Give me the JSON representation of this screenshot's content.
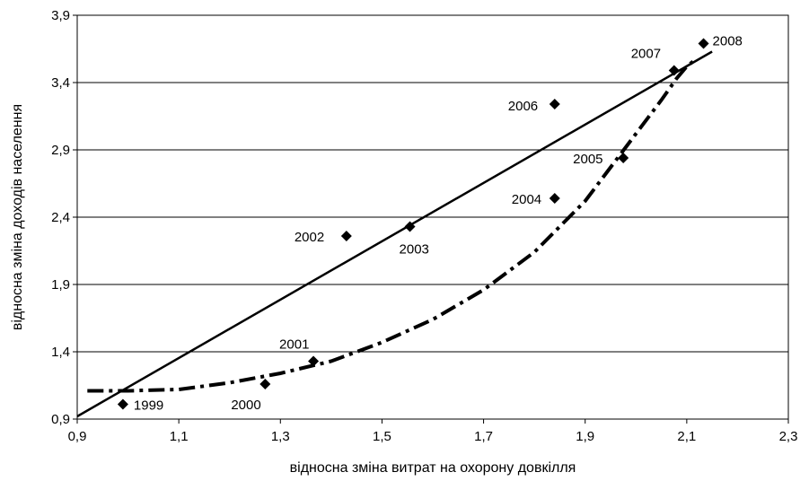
{
  "chart_data": {
    "type": "scatter",
    "title": "",
    "xlabel": "відносна зміна витрат на охорону довкілля",
    "ylabel": "відносна зміна доходів населення",
    "xlim": [
      0.9,
      2.3
    ],
    "ylim": [
      0.9,
      3.9
    ],
    "x_ticks": [
      "0,9",
      "1,1",
      "1,3",
      "1,5",
      "1,7",
      "1,9",
      "2,1",
      "2,3"
    ],
    "y_ticks": [
      "0,9",
      "1,4",
      "1,9",
      "2,4",
      "2,9",
      "3,4",
      "3,9"
    ],
    "grid": "horizontal",
    "points": [
      {
        "label": "1999",
        "x": 0.99,
        "y": 1.01
      },
      {
        "label": "2000",
        "x": 1.27,
        "y": 1.16
      },
      {
        "label": "2001",
        "x": 1.365,
        "y": 1.33
      },
      {
        "label": "2002",
        "x": 1.43,
        "y": 2.26
      },
      {
        "label": "2003",
        "x": 1.555,
        "y": 2.33
      },
      {
        "label": "2004",
        "x": 1.84,
        "y": 2.54
      },
      {
        "label": "2005",
        "x": 1.975,
        "y": 2.84
      },
      {
        "label": "2006",
        "x": 1.84,
        "y": 3.24
      },
      {
        "label": "2007",
        "x": 2.075,
        "y": 3.49
      },
      {
        "label": "2008",
        "x": 2.133,
        "y": 3.69
      }
    ],
    "trend_lines": [
      {
        "kind": "linear",
        "style": "solid",
        "x": [
          0.9,
          2.15
        ],
        "y": [
          0.92,
          3.63
        ]
      },
      {
        "kind": "curve",
        "style": "dash-dot",
        "x": [
          0.92,
          1.0,
          1.1,
          1.2,
          1.3,
          1.4,
          1.5,
          1.6,
          1.7,
          1.8,
          1.9,
          1.95,
          2.0,
          2.05,
          2.08,
          2.1,
          2.12
        ],
        "y": [
          1.11,
          1.11,
          1.12,
          1.17,
          1.24,
          1.33,
          1.47,
          1.64,
          1.86,
          2.14,
          2.52,
          2.77,
          3.02,
          3.27,
          3.43,
          3.52,
          3.58
        ]
      }
    ]
  }
}
